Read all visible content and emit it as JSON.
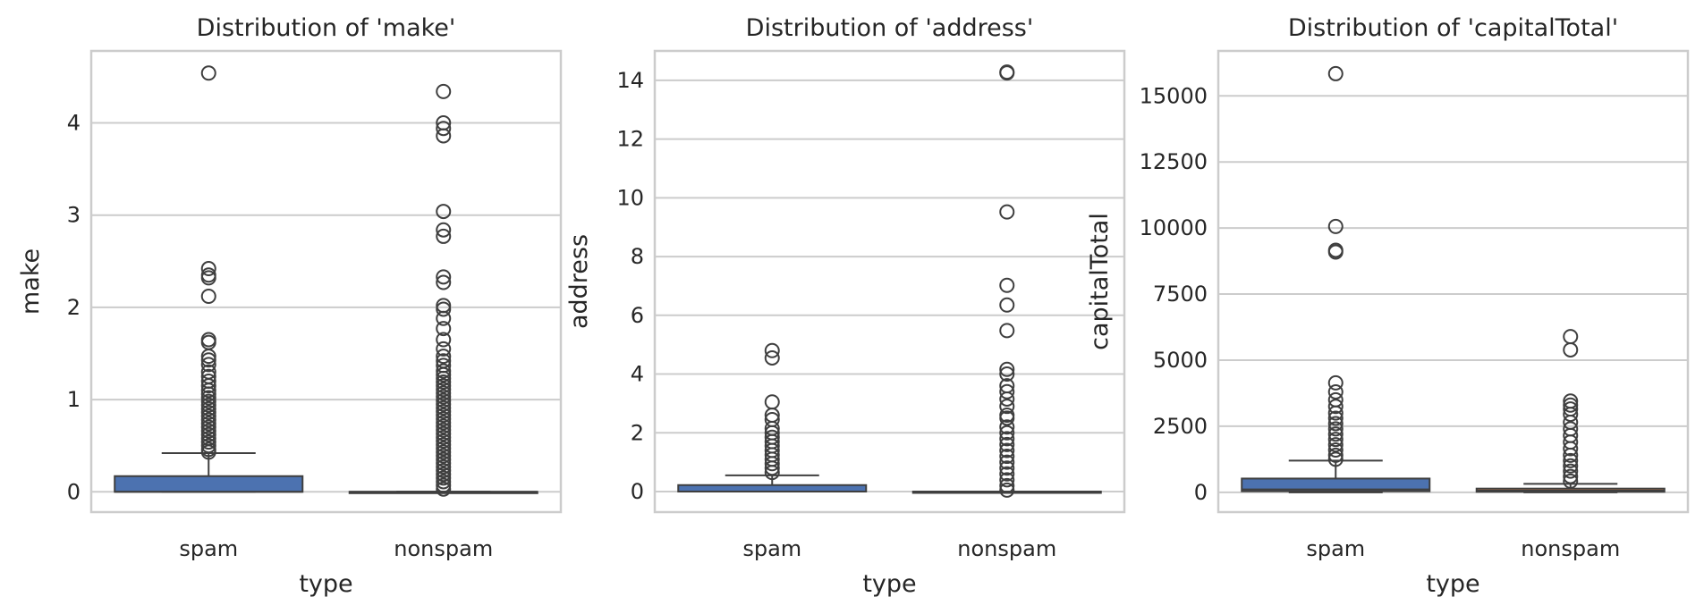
{
  "chart_data": [
    {
      "type": "box",
      "title": "Distribution of 'make'",
      "xlabel": "type",
      "ylabel": "make",
      "categories": [
        "spam",
        "nonspam"
      ],
      "ylim": [
        -0.22,
        4.78
      ],
      "yticks": [
        0,
        1,
        2,
        3,
        4
      ],
      "ytick_labels": [
        "0",
        "1",
        "2",
        "3",
        "4"
      ],
      "grid": true,
      "boxes": [
        {
          "category": "spam",
          "q1": 0,
          "median": 0,
          "q3": 0.17,
          "whisker_low": 0,
          "whisker_high": 0.42,
          "outliers": [
            4.54,
            2.42,
            2.35,
            2.32,
            2.12,
            1.65,
            1.62,
            1.47,
            1.43,
            1.38,
            1.3,
            1.25,
            1.2,
            1.15,
            1.1,
            1.06,
            1.02,
            0.98,
            0.94,
            0.9,
            0.86,
            0.82,
            0.78,
            0.74,
            0.7,
            0.66,
            0.62,
            0.58,
            0.54,
            0.5,
            0.46,
            0.43
          ],
          "color": "#4c72b0"
        },
        {
          "category": "nonspam",
          "q1": 0,
          "median": 0,
          "q3": 0,
          "whisker_low": 0,
          "whisker_high": 0,
          "outliers": [
            4.34,
            4.0,
            3.94,
            3.86,
            3.04,
            2.84,
            2.77,
            2.33,
            2.27,
            2.02,
            1.98,
            1.88,
            1.77,
            1.65,
            1.55,
            1.47,
            1.42,
            1.37,
            1.31,
            1.27,
            1.23,
            1.19,
            1.15,
            1.11,
            1.07,
            1.03,
            0.99,
            0.95,
            0.91,
            0.87,
            0.83,
            0.79,
            0.75,
            0.71,
            0.67,
            0.63,
            0.59,
            0.55,
            0.51,
            0.47,
            0.43,
            0.39,
            0.35,
            0.31,
            0.27,
            0.23,
            0.19,
            0.15,
            0.11,
            0.07,
            0.03
          ],
          "color": "#dd8452"
        }
      ]
    },
    {
      "type": "box",
      "title": "Distribution of 'address'",
      "xlabel": "type",
      "ylabel": "address",
      "categories": [
        "spam",
        "nonspam"
      ],
      "ylim": [
        -0.7,
        15.0
      ],
      "yticks": [
        0,
        2,
        4,
        6,
        8,
        10,
        12,
        14
      ],
      "ytick_labels": [
        "0",
        "2",
        "4",
        "6",
        "8",
        "10",
        "12",
        "14"
      ],
      "grid": true,
      "boxes": [
        {
          "category": "spam",
          "q1": 0,
          "median": 0,
          "q3": 0.22,
          "whisker_low": 0,
          "whisker_high": 0.55,
          "outliers": [
            4.8,
            4.55,
            3.05,
            2.6,
            2.45,
            2.15,
            2.0,
            1.85,
            1.7,
            1.55,
            1.4,
            1.25,
            1.1,
            0.95,
            0.8,
            0.65
          ],
          "color": "#4c72b0"
        },
        {
          "category": "nonspam",
          "q1": 0,
          "median": 0,
          "q3": 0,
          "whisker_low": 0,
          "whisker_high": 0,
          "outliers": [
            14.28,
            14.25,
            9.52,
            7.02,
            6.35,
            5.48,
            4.16,
            4.0,
            3.6,
            3.4,
            3.15,
            2.9,
            2.6,
            2.5,
            2.2,
            2.0,
            1.8,
            1.6,
            1.4,
            1.2,
            1.0,
            0.8,
            0.6,
            0.4,
            0.2,
            0.05
          ],
          "color": "#dd8452"
        }
      ]
    },
    {
      "type": "box",
      "title": "Distribution of 'capitalTotal'",
      "xlabel": "type",
      "ylabel": "capitalTotal",
      "categories": [
        "spam",
        "nonspam"
      ],
      "ylim": [
        -750,
        16700
      ],
      "yticks": [
        0,
        2500,
        5000,
        7500,
        10000,
        12500,
        15000
      ],
      "ytick_labels": [
        "0",
        "2500",
        "5000",
        "7500",
        "10000",
        "12500",
        "15000"
      ],
      "grid": true,
      "boxes": [
        {
          "category": "spam",
          "q1": 40,
          "median": 110,
          "q3": 520,
          "whisker_low": 0,
          "whisker_high": 1200,
          "outliers": [
            15840,
            10060,
            9160,
            9090,
            4140,
            3800,
            3500,
            3250,
            3000,
            2800,
            2600,
            2400,
            2200,
            2000,
            1800,
            1600,
            1400,
            1250
          ],
          "color": "#4c72b0"
        },
        {
          "category": "nonspam",
          "q1": 20,
          "median": 60,
          "q3": 140,
          "whisker_low": 0,
          "whisker_high": 320,
          "outliers": [
            5890,
            5390,
            3450,
            3300,
            3150,
            2950,
            2650,
            2400,
            2150,
            1900,
            1650,
            1400,
            1200,
            1000,
            800,
            600,
            420
          ],
          "color": "#dd8452"
        }
      ]
    }
  ]
}
